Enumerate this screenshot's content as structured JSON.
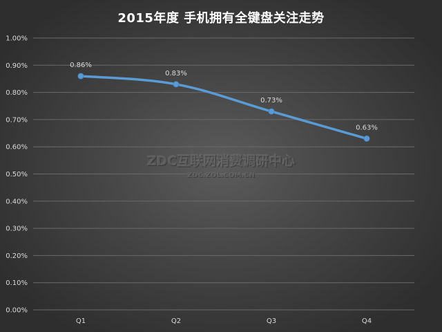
{
  "chart_data": {
    "type": "line",
    "title": "2015年度 手机拥有全键盘关注走势",
    "categories": [
      "Q1",
      "Q2",
      "Q3",
      "Q4"
    ],
    "series": [
      {
        "values": [
          0.86,
          0.83,
          0.73,
          0.63
        ],
        "data_labels": [
          "0.86%",
          "0.83%",
          "0.73%",
          "0.63%"
        ]
      }
    ],
    "y_ticks": [
      "0.00%",
      "0.10%",
      "0.20%",
      "0.30%",
      "0.40%",
      "0.50%",
      "0.60%",
      "0.70%",
      "0.80%",
      "0.90%",
      "1.00%"
    ],
    "ylim": [
      0,
      1.0
    ],
    "y_unit": "%",
    "grid": true,
    "line_color": "#5b9bd5",
    "gridline_color": "#6a6a6a"
  },
  "watermark": {
    "main": "ZDC互联网消费调研中心",
    "sub": "ZDC.ZOL.COM.CN"
  }
}
